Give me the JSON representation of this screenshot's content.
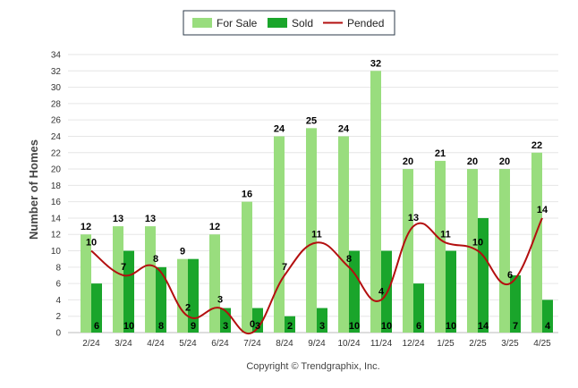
{
  "chart_data": {
    "type": "bar",
    "categories": [
      "2/24",
      "3/24",
      "4/24",
      "5/24",
      "6/24",
      "7/24",
      "8/24",
      "9/24",
      "10/24",
      "11/24",
      "12/24",
      "1/25",
      "2/25",
      "3/25",
      "4/25"
    ],
    "series": [
      {
        "name": "For Sale",
        "kind": "bar",
        "color": "#99dd7e",
        "values": [
          12,
          13,
          13,
          9,
          12,
          16,
          24,
          25,
          24,
          32,
          20,
          21,
          20,
          20,
          22
        ]
      },
      {
        "name": "Sold",
        "kind": "bar",
        "color": "#1aa52b",
        "values": [
          6,
          10,
          8,
          9,
          3,
          3,
          2,
          3,
          10,
          10,
          6,
          10,
          14,
          7,
          4
        ]
      },
      {
        "name": "Pended",
        "kind": "line",
        "color": "#b30f0f",
        "values": [
          10,
          7,
          8,
          2,
          3,
          0,
          7,
          11,
          8,
          4,
          13,
          11,
          10,
          6,
          14
        ]
      }
    ],
    "ylabel": "Number of Homes",
    "xlabel": "",
    "ylim": [
      0,
      34
    ],
    "yticks": [
      0,
      2,
      4,
      6,
      8,
      10,
      12,
      14,
      16,
      18,
      20,
      22,
      24,
      26,
      28,
      30,
      32,
      34
    ],
    "grid": true,
    "legend": "top-center"
  },
  "footer": {
    "credit": "Copyright © Trendgraphix, Inc."
  }
}
